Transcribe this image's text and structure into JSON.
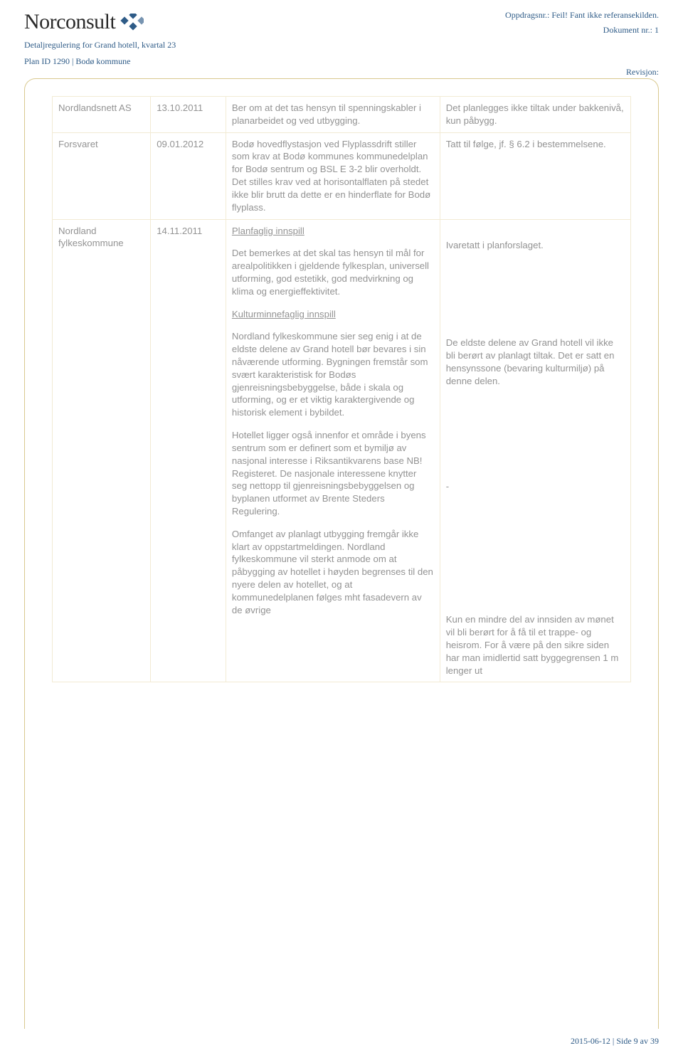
{
  "header": {
    "logo_text": "Norconsult",
    "sub1": "Detaljregulering for Grand hotell, kvartal 23",
    "sub2": "Plan ID 1290 | Bodø kommune",
    "right1": "Oppdragsnr.: Feil! Fant ikke referansekilden.",
    "right2": "Dokument nr.: 1",
    "revision": "Revisjon:"
  },
  "logo_colors": {
    "diamond": "#2e5b87"
  },
  "table": {
    "border_color": "#f2ebd4",
    "text_color": "#939393",
    "rows": [
      {
        "col1": "Nordlandsnett AS",
        "col2": "13.10.2011",
        "col3_parts": [
          {
            "type": "p",
            "text": "Ber om at det tas hensyn til spenningskabler i planarbeidet og ved utbygging."
          }
        ],
        "col4_parts": [
          {
            "type": "p",
            "text": "Det planlegges ikke tiltak under bakkenivå, kun påbygg."
          }
        ]
      },
      {
        "col1": "Forsvaret",
        "col2": "09.01.2012",
        "col3_parts": [
          {
            "type": "p",
            "text": "Bodø hovedflystasjon ved Flyplassdrift stiller som krav at Bodø kommunes kommunedelplan for Bodø sentrum og BSL E 3-2 blir overholdt. Det stilles krav ved at horisontalflaten på stedet ikke blir brutt da dette er en hinderflate for Bodø flyplass."
          }
        ],
        "col4_parts": [
          {
            "type": "p",
            "text": "Tatt til følge, jf. § 6.2 i bestemmelsene."
          }
        ]
      },
      {
        "col1": "Nordland fylkeskommune",
        "col2": "14.11.2011",
        "col3_parts": [
          {
            "type": "u",
            "text": "Planfaglig innspill"
          },
          {
            "type": "p",
            "text": "Det bemerkes at det skal tas hensyn til mål for arealpolitikken i gjeldende fylkesplan, universell utforming, god estetikk, god medvirkning og klima og energieffektivitet."
          },
          {
            "type": "u",
            "text": "Kulturminnefaglig innspill"
          },
          {
            "type": "p",
            "text": "Nordland fylkeskommune sier seg enig i at de eldste delene av Grand hotell bør bevares i sin nåværende utforming. Bygningen fremstår som svært karakteristisk for Bodøs gjenreisningsbebyggelse, både i skala og utforming, og er et viktig karaktergivende og historisk element i bybildet."
          },
          {
            "type": "p",
            "text": "Hotellet ligger også innenfor et område i byens sentrum som er definert som et bymiljø av nasjonal interesse i Riksantikvarens base NB! Registeret. De nasjonale interessene knytter seg nettopp til gjenreisningsbebyggelsen og byplanen utformet av Brente Steders Regulering."
          },
          {
            "type": "p",
            "text": "Omfanget av planlagt utbygging fremgår ikke klart av oppstartmeldingen. Nordland fylkeskommune vil sterkt anmode om at påbygging av hotellet i høyden begrenses til den nyere delen av hotellet, og at kommunedelplanen følges mht fasadevern av de øvrige"
          }
        ],
        "col4_parts": [
          {
            "type": "sp",
            "text": "Ivaretatt i planforslaget."
          },
          {
            "type": "sp",
            "text": "De eldste delene av Grand hotell vil ikke bli berørt av planlagt tiltak. Det er satt en hensynssone (bevaring kulturmiljø) på denne delen."
          },
          {
            "type": "sp",
            "text": "-"
          },
          {
            "type": "p",
            "text": "Kun en mindre del av innsiden av mønet vil bli berørt for å få til et trappe- og heisrom. For å være på den sikre siden har man imidlertid satt byggegrensen 1 m lenger ut"
          }
        ]
      }
    ]
  },
  "footer": {
    "text": "2015-06-12 | Side 9 av 39"
  }
}
